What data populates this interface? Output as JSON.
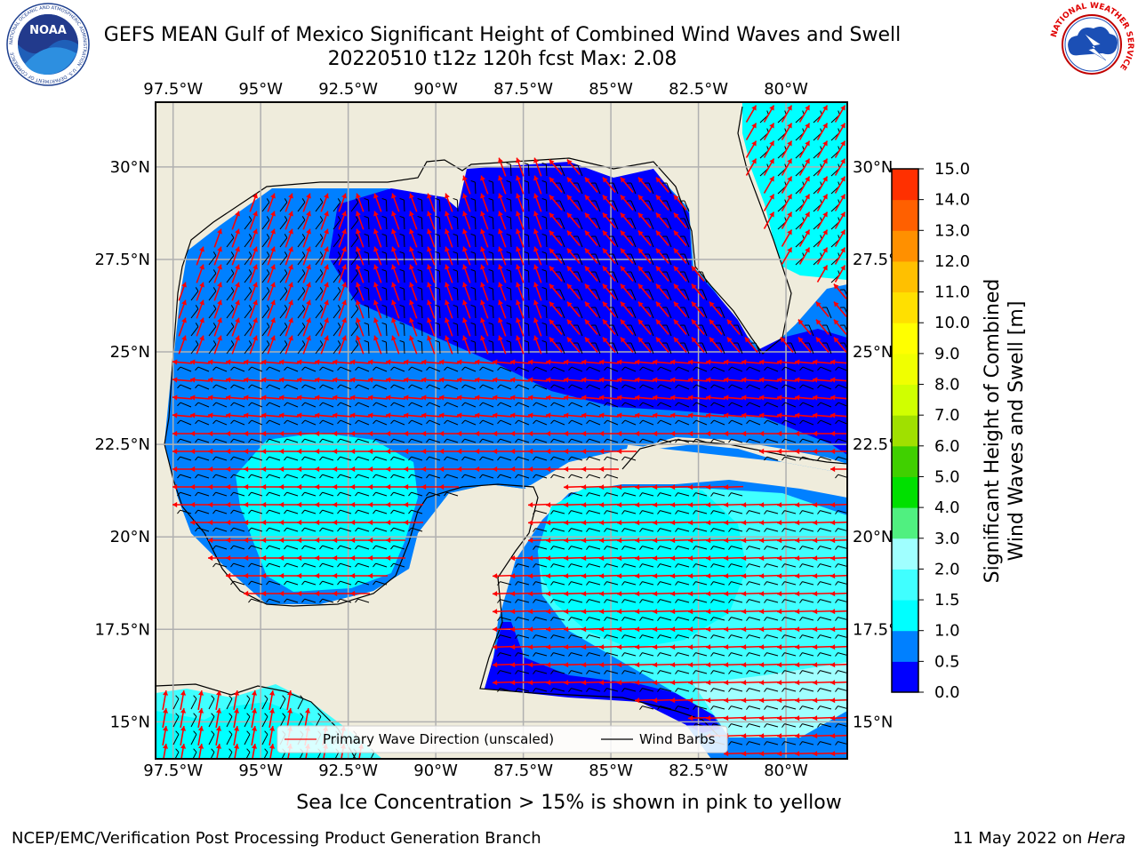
{
  "header": {
    "title_line1": "GEFS MEAN Gulf of Mexico Significant Height of Combined Wind Waves and Swell",
    "title_line2": "20220510 t12z 120h fcst   Max: 2.08"
  },
  "logos": {
    "noaa": {
      "text": "NOAA",
      "ring_text": "NATIONAL OCEANIC AND ATMOSPHERIC ADMINISTRATION · U.S. DEPARTMENT OF COMMERCE"
    },
    "nws": {
      "ring_text": "NATIONAL WEATHER SERVICE"
    }
  },
  "map": {
    "projection": "cylindrical",
    "lon_range": [
      -98.0,
      -78.25
    ],
    "lat_range": [
      14.0,
      31.75
    ],
    "lon_ticks": [
      "97.5°W",
      "95°W",
      "92.5°W",
      "90°W",
      "87.5°W",
      "85°W",
      "82.5°W",
      "80°W"
    ],
    "lon_tick_values": [
      -97.5,
      -95,
      -92.5,
      -90,
      -87.5,
      -85,
      -82.5,
      -80
    ],
    "lat_ticks": [
      "30°N",
      "27.5°N",
      "25°N",
      "22.5°N",
      "20°N",
      "17.5°N",
      "15°N"
    ],
    "lat_tick_values": [
      30,
      27.5,
      25,
      22.5,
      20,
      17.5,
      15
    ],
    "grid": true,
    "land_color": "#efecdc",
    "legend": {
      "placement": "bottom-center",
      "items": [
        {
          "label": "Primary Wave Direction (unscaled)",
          "color": "#ff0000"
        },
        {
          "label": "Wind Barbs",
          "color": "#000000"
        }
      ]
    }
  },
  "colorbar": {
    "label_line1": "Significant Height of Combined",
    "label_line2": "Wind Waves and Swell [m]",
    "ticks": [
      "0.0",
      "0.5",
      "1.0",
      "1.5",
      "2.0",
      "3.0",
      "4.0",
      "5.0",
      "6.0",
      "7.0",
      "8.0",
      "9.0",
      "10.0",
      "11.0",
      "12.0",
      "13.0",
      "14.0",
      "15.0"
    ],
    "colors": [
      "#0000ff",
      "#0080ff",
      "#00ffff",
      "#40ffff",
      "#a0ffff",
      "#50f080",
      "#00e000",
      "#40d000",
      "#a0e000",
      "#d0ff00",
      "#f0ff00",
      "#ffff00",
      "#ffe000",
      "#ffc000",
      "#ff9000",
      "#ff6000",
      "#ff3000",
      "#ff0000"
    ]
  },
  "chart_data": {
    "type": "heatmap",
    "variable": "Significant Height of Combined Wind Waves and Swell [m]",
    "max": 2.08,
    "regions": [
      {
        "zone": "northern Gulf",
        "range_m": [
          0.0,
          0.5
        ]
      },
      {
        "zone": "western & central Gulf",
        "range_m": [
          0.5,
          1.0
        ]
      },
      {
        "zone": "Bay of Campeche",
        "range_m": [
          1.0,
          1.5
        ]
      },
      {
        "zone": "Atlantic off east Florida",
        "range_m": [
          1.0,
          1.5
        ]
      },
      {
        "zone": "NW Caribbean",
        "range_m": [
          1.5,
          2.0
        ]
      },
      {
        "zone": "Caribbean off Honduras",
        "range_m": [
          2.0,
          3.0
        ]
      }
    ]
  },
  "footer": {
    "sea_ice_note": "Sea Ice Concentration > 15% is shown in pink to yellow",
    "credit_left": "NCEP/EMC/Verification Post Processing Product Generation Branch",
    "credit_right_prefix": "11 May 2022 on ",
    "credit_right_host": "Hera"
  }
}
